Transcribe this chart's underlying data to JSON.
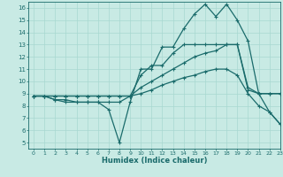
{
  "title": "",
  "xlabel": "Humidex (Indice chaleur)",
  "ylabel": "",
  "xlim": [
    -0.5,
    23
  ],
  "ylim": [
    4.5,
    16.5
  ],
  "xticks": [
    0,
    1,
    2,
    3,
    4,
    5,
    6,
    7,
    8,
    9,
    10,
    11,
    12,
    13,
    14,
    15,
    16,
    17,
    18,
    19,
    20,
    21,
    22,
    23
  ],
  "yticks": [
    5,
    6,
    7,
    8,
    9,
    10,
    11,
    12,
    13,
    14,
    15,
    16
  ],
  "bg_color": "#c8eae4",
  "grid_color": "#a8d8d0",
  "line_color": "#1a6b6b",
  "line_width": 0.9,
  "marker": "+",
  "marker_size": 3,
  "marker_lw": 0.8,
  "lines": [
    {
      "x": [
        0,
        1,
        2,
        3,
        4,
        5,
        6,
        7,
        8,
        9,
        10,
        11,
        12,
        13,
        14,
        15,
        16,
        17,
        18,
        19,
        20,
        21,
        22,
        23
      ],
      "y": [
        8.8,
        8.8,
        8.5,
        8.5,
        8.3,
        8.3,
        8.3,
        7.7,
        5.0,
        8.3,
        11.0,
        11.0,
        12.8,
        12.8,
        14.3,
        15.5,
        16.3,
        15.3,
        16.3,
        15.0,
        13.3,
        9.0,
        9.0,
        9.0
      ]
    },
    {
      "x": [
        0,
        1,
        2,
        3,
        4,
        5,
        6,
        7,
        8,
        9,
        10,
        11,
        12,
        13,
        14,
        15,
        16,
        17,
        18,
        19,
        20,
        21,
        22,
        23
      ],
      "y": [
        8.8,
        8.8,
        8.5,
        8.3,
        8.3,
        8.3,
        8.3,
        8.3,
        8.3,
        8.8,
        10.5,
        11.3,
        11.3,
        12.3,
        13.0,
        13.0,
        13.0,
        13.0,
        13.0,
        13.0,
        9.3,
        9.0,
        9.0,
        9.0
      ]
    },
    {
      "x": [
        0,
        1,
        2,
        3,
        4,
        5,
        6,
        7,
        8,
        9,
        10,
        11,
        12,
        13,
        14,
        15,
        16,
        17,
        18,
        19,
        20,
        21,
        22,
        23
      ],
      "y": [
        8.8,
        8.8,
        8.8,
        8.8,
        8.8,
        8.8,
        8.8,
        8.8,
        8.8,
        8.8,
        9.5,
        10.0,
        10.5,
        11.0,
        11.5,
        12.0,
        12.3,
        12.5,
        13.0,
        13.0,
        9.5,
        9.0,
        7.5,
        6.5
      ]
    },
    {
      "x": [
        0,
        1,
        2,
        3,
        4,
        5,
        6,
        7,
        8,
        9,
        10,
        11,
        12,
        13,
        14,
        15,
        16,
        17,
        18,
        19,
        20,
        21,
        22,
        23
      ],
      "y": [
        8.8,
        8.8,
        8.8,
        8.8,
        8.8,
        8.8,
        8.8,
        8.8,
        8.8,
        8.8,
        9.0,
        9.3,
        9.7,
        10.0,
        10.3,
        10.5,
        10.8,
        11.0,
        11.0,
        10.5,
        9.0,
        8.0,
        7.5,
        6.5
      ]
    }
  ]
}
